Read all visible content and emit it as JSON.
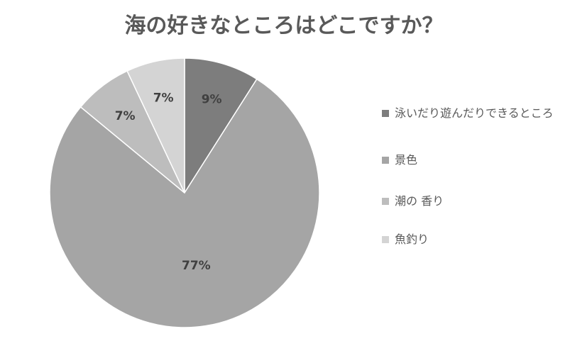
{
  "chart_data": {
    "type": "pie",
    "title": "海の好きなところはどこですか？",
    "categories": [
      "泳いだり遊んだりできるところ",
      "景色",
      "潮の 香り",
      "魚釣り"
    ],
    "values": [
      9,
      77,
      7,
      7
    ],
    "value_labels": [
      "9%",
      "77%",
      "7%",
      "7%"
    ],
    "colors": [
      "#7d7d7d",
      "#a5a5a5",
      "#bdbdbd",
      "#d4d4d4"
    ]
  }
}
